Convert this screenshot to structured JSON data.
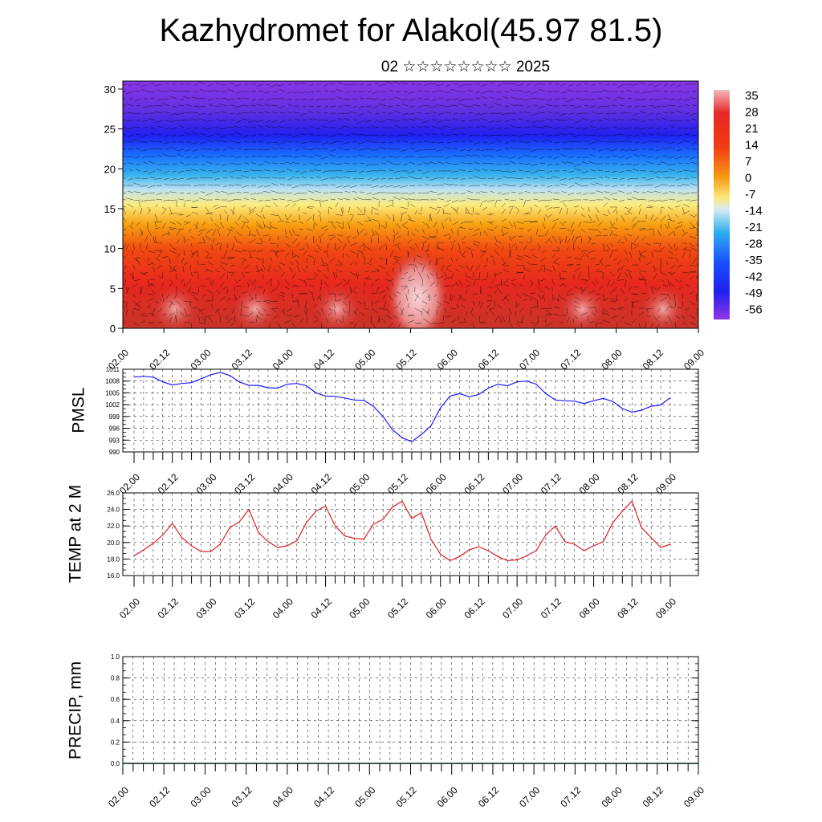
{
  "header": {
    "title": "Kazhydromet for Alakol(45.97 81.5)",
    "subtitle": "02 ☆☆☆☆☆☆☆☆ 2025"
  },
  "time_labels": [
    "02.00",
    "02.12",
    "03.00",
    "03.12",
    "04.00",
    "04.12",
    "05.00",
    "05.12",
    "06.00",
    "06.12",
    "07.00",
    "07.12",
    "08.00",
    "08.12",
    "09.00"
  ],
  "chart_data": [
    {
      "type": "heatmap",
      "title": "",
      "x": [
        "02.00",
        "02.12",
        "03.00",
        "03.12",
        "04.00",
        "04.12",
        "05.00",
        "05.12",
        "06.00",
        "06.12",
        "07.00",
        "07.12",
        "08.00",
        "08.12",
        "09.00"
      ],
      "y_ticks": [
        0,
        5,
        10,
        15,
        20,
        25,
        30
      ],
      "ylim": [
        0,
        31
      ],
      "colorbar": {
        "labels": [
          "35",
          "28",
          "21",
          "14",
          "7",
          "0",
          "-7",
          "-14",
          "-21",
          "-28",
          "-35",
          "-42",
          "-49",
          "-56"
        ],
        "range": [
          -60,
          39
        ]
      },
      "overlay": "wind vectors"
    },
    {
      "type": "line",
      "ylabel": "PMSL",
      "yticks": [
        "990",
        "993",
        "996",
        "999",
        "1002",
        "1005",
        "1008",
        "1011"
      ],
      "ylim": [
        990,
        1011
      ],
      "color": "#1a1aff",
      "x_hours": [
        0,
        3,
        6,
        9,
        12,
        15,
        18,
        21,
        24,
        27,
        30,
        33,
        36,
        39,
        42,
        45,
        48,
        51,
        54,
        57,
        60,
        63,
        66,
        69,
        72,
        75,
        78,
        81,
        84,
        87,
        90,
        93,
        96,
        99,
        102,
        105,
        108,
        111,
        114,
        117,
        120,
        123,
        126,
        129,
        132,
        135,
        138,
        141,
        144,
        147,
        150,
        153,
        156,
        159,
        162,
        165,
        168
      ],
      "values": [
        1009.0,
        1009.2,
        1009.0,
        1007.8,
        1007.0,
        1007.4,
        1007.6,
        1008.6,
        1009.6,
        1010.2,
        1009.4,
        1007.8,
        1006.9,
        1006.9,
        1006.3,
        1006.2,
        1007.2,
        1007.4,
        1006.8,
        1005.0,
        1004.2,
        1004.1,
        1003.7,
        1003.2,
        1003.1,
        1001.6,
        999.0,
        995.6,
        993.6,
        992.6,
        994.4,
        996.6,
        1001.2,
        1004.2,
        1004.8,
        1004.0,
        1004.6,
        1006.2,
        1007.2,
        1006.8,
        1007.8,
        1008.0,
        1007.2,
        1004.8,
        1003.2,
        1003.0,
        1002.9,
        1002.3,
        1003.0,
        1003.6,
        1002.8,
        1001.0,
        1000.1,
        1000.6,
        1001.6,
        1001.9,
        1003.8
      ]
    },
    {
      "type": "line",
      "ylabel": "TEMP at 2 M",
      "yticks": [
        "16.0",
        "18.0",
        "20.0",
        "22.0",
        "24.0",
        "26.0"
      ],
      "ylim": [
        16,
        26
      ],
      "color": "#e02020",
      "x_hours": [
        0,
        3,
        6,
        9,
        12,
        15,
        18,
        21,
        24,
        27,
        30,
        33,
        36,
        39,
        42,
        45,
        48,
        51,
        54,
        57,
        60,
        63,
        66,
        69,
        72,
        75,
        78,
        81,
        84,
        87,
        90,
        93,
        96,
        99,
        102,
        105,
        108,
        111,
        114,
        117,
        120,
        123,
        126,
        129,
        132,
        135,
        138,
        141,
        144,
        147,
        150,
        153,
        156,
        159,
        162,
        165,
        168
      ],
      "values": [
        18.4,
        19.1,
        19.9,
        20.9,
        22.3,
        20.6,
        19.6,
        18.9,
        18.9,
        19.8,
        21.8,
        22.5,
        24.0,
        21.2,
        20.1,
        19.4,
        19.6,
        20.2,
        22.4,
        23.8,
        24.4,
        22.0,
        20.8,
        20.5,
        20.4,
        22.2,
        22.8,
        24.3,
        25.0,
        22.9,
        23.6,
        20.4,
        18.6,
        17.8,
        18.3,
        19.1,
        19.5,
        19.0,
        18.3,
        17.8,
        17.9,
        18.4,
        19.0,
        20.9,
        22.0,
        20.1,
        19.8,
        19.0,
        19.6,
        20.1,
        22.4,
        23.8,
        25.0,
        21.8,
        20.6,
        19.4,
        19.8
      ]
    },
    {
      "type": "line",
      "ylabel": "PRECIP, mm",
      "yticks": [
        "0.0",
        "0.2",
        "0.4",
        "0.6",
        "0.8",
        "1.0"
      ],
      "ylim": [
        0,
        1
      ],
      "color": "#0a6a3a",
      "values": [
        0
      ]
    }
  ]
}
